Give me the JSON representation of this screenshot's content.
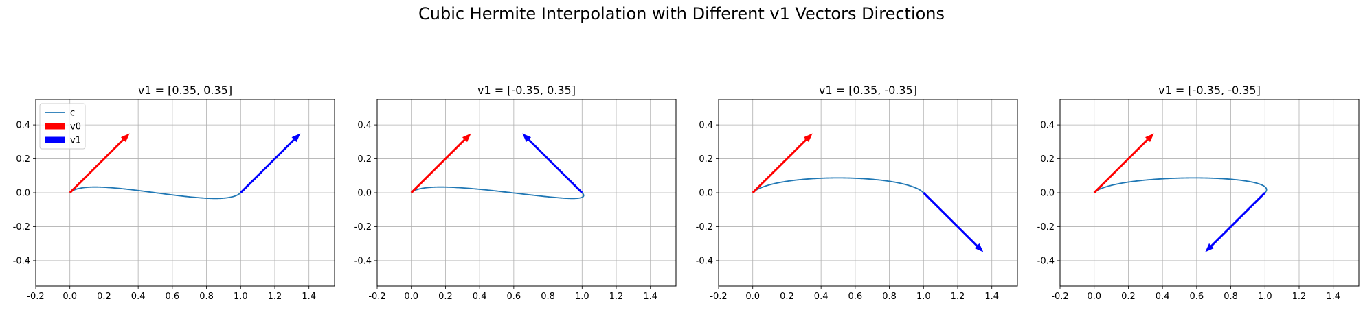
{
  "figure": {
    "title": "Cubic Hermite Interpolation with Different v1 Vectors Directions"
  },
  "colors": {
    "curve": "#1f77b4",
    "v0": "#ff0000",
    "v1": "#0000ff",
    "grid": "#b0b0b0"
  },
  "chart_data": [
    {
      "type": "line",
      "title": "v1 = [0.35, 0.35]",
      "xlim": [
        -0.2,
        1.55
      ],
      "ylim": [
        -0.55,
        0.55
      ],
      "xticks": [
        "-0.2",
        "0.0",
        "0.2",
        "0.4",
        "0.6",
        "0.8",
        "1.0",
        "1.2",
        "1.4"
      ],
      "yticks": [
        "-0.4",
        "-0.2",
        "0.0",
        "0.2",
        "0.4"
      ],
      "grid": true,
      "legend": {
        "placement": "upper left",
        "entries": [
          "c",
          "v0",
          "v1"
        ]
      },
      "p0": [
        0,
        0
      ],
      "p1": [
        1,
        0
      ],
      "v0": [
        0.35,
        0.35
      ],
      "v1": [
        0.35,
        0.35
      ]
    },
    {
      "type": "line",
      "title": "v1 = [-0.35, 0.35]",
      "xlim": [
        -0.2,
        1.55
      ],
      "ylim": [
        -0.55,
        0.55
      ],
      "xticks": [
        "-0.2",
        "0.0",
        "0.2",
        "0.4",
        "0.6",
        "0.8",
        "1.0",
        "1.2",
        "1.4"
      ],
      "yticks": [
        "-0.4",
        "-0.2",
        "0.0",
        "0.2",
        "0.4"
      ],
      "grid": true,
      "p0": [
        0,
        0
      ],
      "p1": [
        1,
        0
      ],
      "v0": [
        0.35,
        0.35
      ],
      "v1": [
        -0.35,
        0.35
      ]
    },
    {
      "type": "line",
      "title": "v1 = [0.35, -0.35]",
      "xlim": [
        -0.2,
        1.55
      ],
      "ylim": [
        -0.55,
        0.55
      ],
      "xticks": [
        "-0.2",
        "0.0",
        "0.2",
        "0.4",
        "0.6",
        "0.8",
        "1.0",
        "1.2",
        "1.4"
      ],
      "yticks": [
        "-0.4",
        "-0.2",
        "0.0",
        "0.2",
        "0.4"
      ],
      "grid": true,
      "p0": [
        0,
        0
      ],
      "p1": [
        1,
        0
      ],
      "v0": [
        0.35,
        0.35
      ],
      "v1": [
        0.35,
        -0.35
      ]
    },
    {
      "type": "line",
      "title": "v1 = [-0.35, -0.35]",
      "xlim": [
        -0.2,
        1.55
      ],
      "ylim": [
        -0.55,
        0.55
      ],
      "xticks": [
        "-0.2",
        "0.0",
        "0.2",
        "0.4",
        "0.6",
        "0.8",
        "1.0",
        "1.2",
        "1.4"
      ],
      "yticks": [
        "-0.4",
        "-0.2",
        "0.0",
        "0.2",
        "0.4"
      ],
      "grid": true,
      "p0": [
        0,
        0
      ],
      "p1": [
        1,
        0
      ],
      "v0": [
        0.35,
        0.35
      ],
      "v1": [
        -0.35,
        -0.35
      ]
    }
  ]
}
